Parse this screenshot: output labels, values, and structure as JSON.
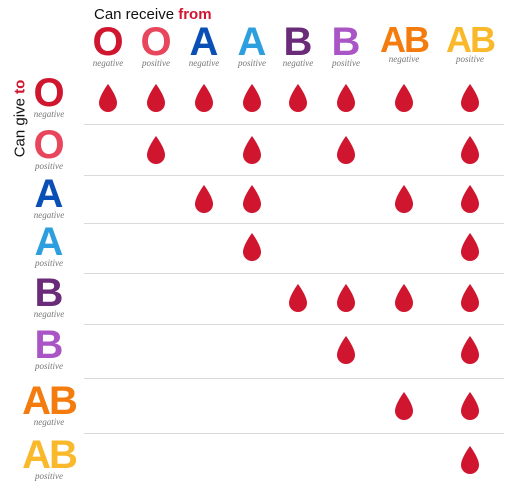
{
  "header": {
    "prefix": "Can receive ",
    "highlight": "from"
  },
  "side": {
    "prefix": "Can give ",
    "highlight": "to"
  },
  "colors": {
    "drop": "#d0152f"
  },
  "types": [
    {
      "letter": "O",
      "sign": "negative",
      "color": "#d0152f"
    },
    {
      "letter": "O",
      "sign": "positive",
      "color": "#e8465c"
    },
    {
      "letter": "A",
      "sign": "negative",
      "color": "#0a4fb5"
    },
    {
      "letter": "A",
      "sign": "positive",
      "color": "#2e9fde"
    },
    {
      "letter": "B",
      "sign": "negative",
      "color": "#6a2b78"
    },
    {
      "letter": "B",
      "sign": "positive",
      "color": "#a955c6"
    },
    {
      "letter": "AB",
      "sign": "negative",
      "color": "#f47c0e"
    },
    {
      "letter": "AB",
      "sign": "positive",
      "color": "#f9b92b"
    }
  ],
  "matrix": [
    [
      1,
      1,
      1,
      1,
      1,
      1,
      1,
      1
    ],
    [
      0,
      1,
      0,
      1,
      0,
      1,
      0,
      1
    ],
    [
      0,
      0,
      1,
      1,
      0,
      0,
      1,
      1
    ],
    [
      0,
      0,
      0,
      1,
      0,
      0,
      0,
      1
    ],
    [
      0,
      0,
      0,
      0,
      1,
      1,
      1,
      1
    ],
    [
      0,
      0,
      0,
      0,
      0,
      1,
      0,
      1
    ],
    [
      0,
      0,
      0,
      0,
      0,
      0,
      1,
      1
    ],
    [
      0,
      0,
      0,
      0,
      0,
      0,
      0,
      1
    ]
  ]
}
